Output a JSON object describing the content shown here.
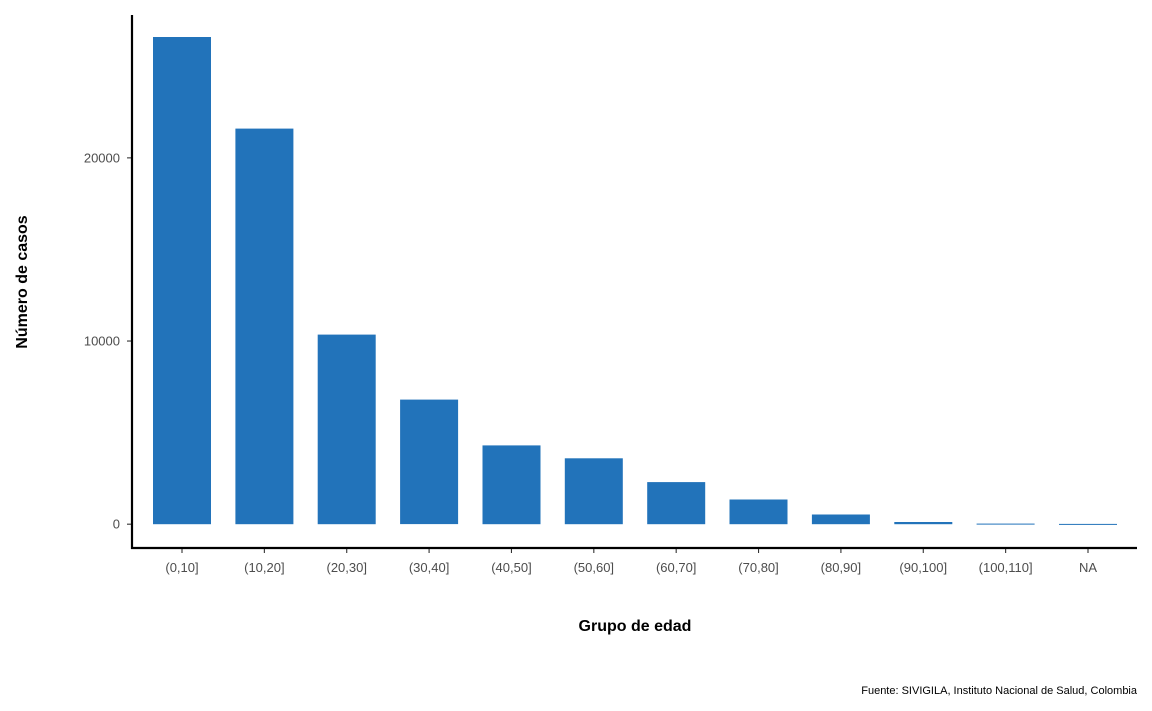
{
  "chart_data": {
    "type": "bar",
    "title": "",
    "xlabel": "Grupo de edad",
    "ylabel": "Número de casos",
    "caption": "Fuente: SIVIGILA, Instituto Nacional de Salud, Colombia",
    "categories": [
      "(0,10]",
      "(10,20]",
      "(20,30]",
      "(30,40]",
      "(40,50]",
      "(50,60]",
      "(60,70]",
      "(70,80]",
      "(80,90]",
      "(90,100]",
      "(100,110]",
      "NA"
    ],
    "values": [
      26600,
      21600,
      10350,
      6800,
      4300,
      3600,
      2300,
      1350,
      530,
      120,
      30,
      15
    ],
    "ylim": [
      -1300,
      27800
    ],
    "yticks": [
      0,
      10000,
      20000
    ],
    "ytick_labels": [
      "0",
      "10000",
      "20000"
    ],
    "bar_color": "#2273BA",
    "grid": false,
    "legend": "none"
  }
}
